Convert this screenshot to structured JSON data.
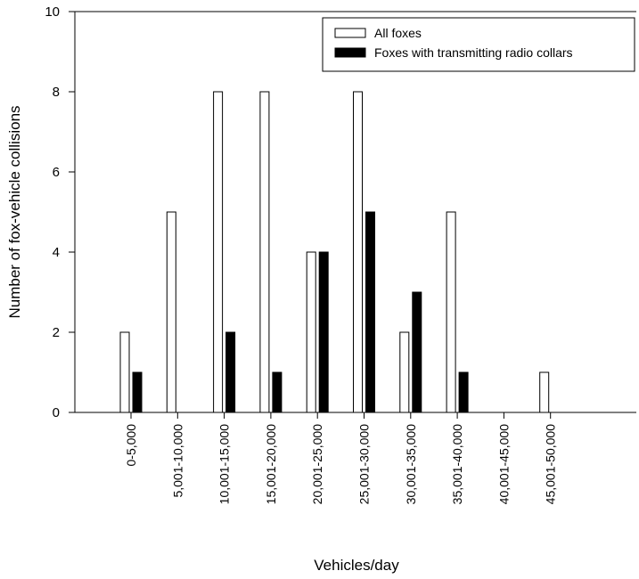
{
  "chart_data": {
    "type": "bar",
    "title": "",
    "xlabel": "Vehicles/day",
    "ylabel": "Number of fox-vehicle collisions",
    "ylim": [
      0,
      10
    ],
    "yticks": [
      0,
      2,
      4,
      6,
      8,
      10
    ],
    "categories": [
      "0-5,000",
      "5,001-10,000",
      "10,001-15,000",
      "15,001-20,000",
      "20,001-25,000",
      "25,001-30,000",
      "30,001-35,000",
      "35,001-40,000",
      "40,001-45,000",
      "45,001-50,000"
    ],
    "series": [
      {
        "name": "All foxes",
        "values": [
          2,
          5,
          8,
          8,
          4,
          8,
          2,
          5,
          0,
          1
        ],
        "fill": "#ffffff",
        "stroke": "#000000"
      },
      {
        "name": "Foxes with transmitting radio collars",
        "values": [
          1,
          0,
          2,
          1,
          4,
          5,
          3,
          1,
          0,
          0
        ],
        "fill": "#000000",
        "stroke": "#000000"
      }
    ],
    "grid": false,
    "legend_position": "top-right"
  }
}
